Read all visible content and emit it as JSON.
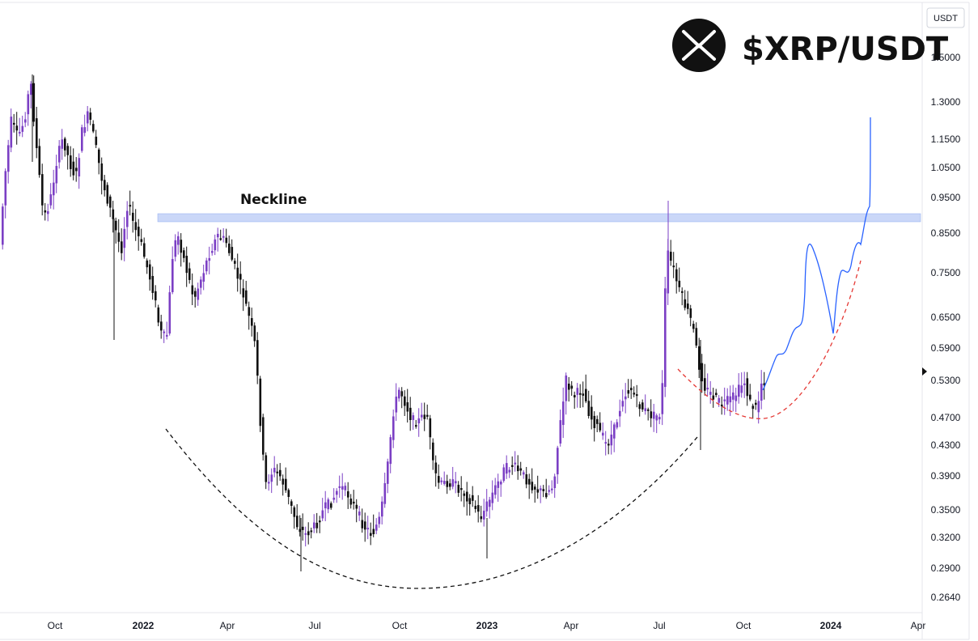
{
  "chart_data": {
    "type": "candlestick",
    "title": "$XRP/USDT",
    "currency_unit": "USDT",
    "y_scale": "log",
    "ylim": [
      0.25,
      1.62
    ],
    "y_ticks": [
      "1.5000",
      "1.3000",
      "1.1500",
      "1.0500",
      "0.9500",
      "0.8500",
      "0.7500",
      "0.6500",
      "0.5900",
      "0.5300",
      "0.4700",
      "0.4300",
      "0.3900",
      "0.3500",
      "0.3200",
      "0.2900",
      "0.2640"
    ],
    "x_ticks": [
      {
        "label": "Oct",
        "bold": false
      },
      {
        "label": "2022",
        "bold": true
      },
      {
        "label": "Apr",
        "bold": false
      },
      {
        "label": "Jul",
        "bold": false
      },
      {
        "label": "Oct",
        "bold": false
      },
      {
        "label": "2023",
        "bold": true
      },
      {
        "label": "Apr",
        "bold": false
      },
      {
        "label": "Jul",
        "bold": false
      },
      {
        "label": "Oct",
        "bold": false
      },
      {
        "label": "2024",
        "bold": true
      },
      {
        "label": "Apr",
        "bold": false
      }
    ],
    "annotations": {
      "neckline_label": "Neckline",
      "neckline_price": 0.885
    },
    "key_points": [
      {
        "date": "2021-09",
        "price": 1.41,
        "note": "high"
      },
      {
        "date": "2022-06",
        "price": 0.29,
        "note": "cup low"
      },
      {
        "date": "2022-12",
        "price": 0.34,
        "note": "low"
      },
      {
        "date": "2023-07",
        "price": 0.93,
        "note": "spike high"
      },
      {
        "date": "2023-10",
        "price": 0.5,
        "note": "handle low"
      }
    ],
    "projection_path": [
      0.51,
      0.57,
      0.63,
      0.83,
      0.61,
      0.77,
      0.9,
      1.24
    ],
    "colors": {
      "up": "#7b3fc4",
      "down": "#111111",
      "neckline": "#b8c9f5",
      "projection": "#2962ff",
      "cup": "#111111",
      "handle": "#e53935",
      "logo_bg": "#111111"
    }
  },
  "icons": {
    "logo": "xrp-logo-icon",
    "marker": "price-marker-icon"
  }
}
